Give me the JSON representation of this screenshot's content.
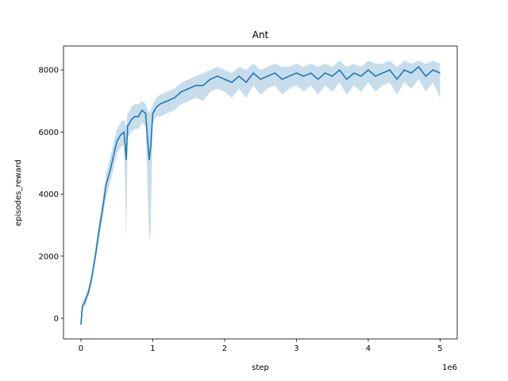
{
  "chart_data": {
    "type": "line",
    "title": "Ant",
    "x_label": "step",
    "y_label": "episodes_reward",
    "x_offset_label": "1e6",
    "x": [
      0,
      0.02,
      0.05,
      0.08,
      0.1,
      0.15,
      0.2,
      0.25,
      0.3,
      0.35,
      0.4,
      0.45,
      0.5,
      0.55,
      0.6,
      0.63,
      0.65,
      0.68,
      0.7,
      0.75,
      0.8,
      0.85,
      0.9,
      0.95,
      0.97,
      1.0,
      1.05,
      1.1,
      1.2,
      1.3,
      1.4,
      1.5,
      1.6,
      1.7,
      1.8,
      1.9,
      2.0,
      2.1,
      2.2,
      2.3,
      2.4,
      2.5,
      2.6,
      2.7,
      2.8,
      2.9,
      3.0,
      3.1,
      3.2,
      3.3,
      3.4,
      3.5,
      3.6,
      3.7,
      3.8,
      3.9,
      4.0,
      4.1,
      4.2,
      4.3,
      4.4,
      4.5,
      4.6,
      4.7,
      4.8,
      4.9,
      5.0
    ],
    "series": [
      {
        "color": "#1f77b4",
        "values": [
          -200,
          400,
          500,
          700,
          800,
          1300,
          2000,
          2800,
          3500,
          4300,
          4700,
          5200,
          5700,
          5900,
          6000,
          5100,
          6200,
          6300,
          6400,
          6500,
          6500,
          6700,
          6600,
          5100,
          5500,
          6600,
          6800,
          6900,
          7000,
          7100,
          7300,
          7400,
          7500,
          7500,
          7700,
          7800,
          7700,
          7600,
          7800,
          7600,
          7900,
          7700,
          7800,
          7900,
          7700,
          7800,
          7900,
          7800,
          7900,
          7700,
          7900,
          7800,
          8000,
          7700,
          7900,
          7800,
          8000,
          7800,
          7900,
          8000,
          7700,
          8000,
          7900,
          8100,
          7800,
          8000,
          7900
        ],
        "lower": [
          -250,
          250,
          350,
          550,
          650,
          1100,
          1800,
          2500,
          3200,
          3900,
          4300,
          4800,
          5300,
          5500,
          5600,
          2600,
          5800,
          5900,
          6000,
          6100,
          6100,
          6300,
          6200,
          2500,
          2800,
          6300,
          6500,
          6500,
          6600,
          6700,
          6900,
          7000,
          7100,
          7000,
          7300,
          7400,
          7300,
          7100,
          7400,
          7100,
          7500,
          7200,
          7400,
          7500,
          7200,
          7400,
          7500,
          7300,
          7500,
          7200,
          7500,
          7300,
          7600,
          7200,
          7500,
          7300,
          7600,
          7300,
          7500,
          7600,
          7200,
          7600,
          7400,
          7700,
          7300,
          7600,
          7100
        ],
        "upper": [
          -150,
          550,
          650,
          850,
          950,
          1500,
          2200,
          3100,
          3800,
          4700,
          5100,
          5600,
          6100,
          6300,
          6400,
          6200,
          6600,
          6700,
          6800,
          6900,
          6900,
          7000,
          6900,
          6600,
          6700,
          6900,
          7100,
          7200,
          7300,
          7400,
          7600,
          7700,
          7800,
          7900,
          8000,
          8100,
          8000,
          7900,
          8100,
          8000,
          8200,
          8000,
          8100,
          8200,
          8100,
          8100,
          8200,
          8100,
          8200,
          8100,
          8200,
          8100,
          8300,
          8100,
          8200,
          8100,
          8300,
          8200,
          8200,
          8300,
          8100,
          8300,
          8200,
          8300,
          8200,
          8300,
          8200
        ]
      }
    ],
    "xlim": [
      -0.243,
      5.238
    ],
    "ylim": [
      -665,
      8770
    ],
    "xticks": [
      0,
      1,
      2,
      3,
      4,
      5
    ],
    "yticks": [
      0,
      2000,
      4000,
      6000,
      8000
    ]
  }
}
